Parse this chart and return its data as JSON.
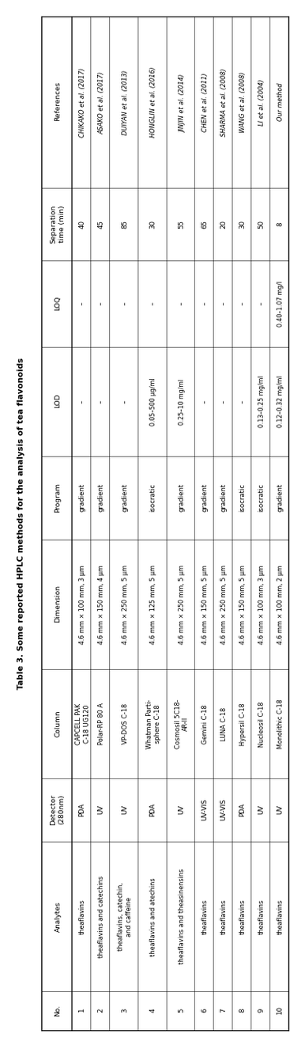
{
  "title": "Table 3. Some reported HPLC methods for the analysis of tea flavonoids",
  "columns": [
    "No.",
    "Analytes",
    "Detector\n(280nm)",
    "Column",
    "Dimension",
    "Program",
    "LOD",
    "LOQ",
    "Separation\ntime (min)",
    "References"
  ],
  "rows": [
    [
      "1",
      "theaflavins",
      "PDA",
      "CAPCELL PAK\nC-18 UG120",
      "4.6 mm × 100 mm, 3 μm",
      "gradient",
      "–",
      "–",
      "40",
      "CHIKAKO et al. (2017)"
    ],
    [
      "2",
      "theaflavins and catechins",
      "UV",
      "Polar-RP 80 A",
      "4.6 mm × 150 mm, 4 μm",
      "gradient",
      "–",
      "–",
      "45",
      "ASAKO et al. (2017)"
    ],
    [
      "3",
      "theaflavins, catechin,\nand caffeine",
      "UV",
      "VP-DOS C-18",
      "4.6 mm × 250 mm, 5 μm",
      "gradient",
      "–",
      "–",
      "85",
      "DUIYAN et al. (2013)"
    ],
    [
      "4",
      "theaflavins and atechins",
      "PDA",
      "Whatman Parti-\nsphere C-18",
      "4.6 mm × 125 mm, 5 μm",
      "isocratic",
      "0.05–500 μg/ml",
      "–",
      "30",
      "HONGLIN et al. (2016)"
    ],
    [
      "5",
      "theaflavins and theasinensins",
      "UV",
      "Cosmosil 5C18-\nAR-II",
      "4.6 mm × 250 mm, 5 μm",
      "gradient",
      "0.25–10 mg/ml",
      "–",
      "55",
      "JINJIN et al. (2014)"
    ],
    [
      "6",
      "theaflavins",
      "UV-VIS",
      "Gemini C-18",
      "4.6 mm × 150 mm, 5 μm",
      "gradient",
      "–",
      "–",
      "65",
      "CHEN et al. (2011)"
    ],
    [
      "7",
      "theaflavins",
      "UV-VIS",
      "LUNA C-18",
      "4.6 mm × 250 mm, 5 μm",
      "gradient",
      "–",
      "–",
      "20",
      "SHARMA et al. (2008)"
    ],
    [
      "8",
      "theaflavins",
      "PDA",
      "Hypersil C-18",
      "4.6 mm × 150 mm, 5 μm",
      "isocratic",
      "–",
      "–",
      "30",
      "WANG et al. (2008)"
    ],
    [
      "9",
      "theaflavins",
      "UV",
      "Nucleosil C-18",
      "4.6 mm × 100 mm, 3 μm",
      "isocratic",
      "0.13–0.25 mg/ml",
      "–",
      "50",
      "LI et al. (2004)"
    ],
    [
      "10",
      "theaflavins",
      "UV",
      "Monolithic C-18",
      "4.6 mm × 100 mm, 2 μm",
      "gradient",
      "0.12–0.32 mg/ml",
      "0.40–1.07 mg/l",
      "8",
      "Our method"
    ]
  ],
  "ref_italic": [
    "CHIKAKO",
    "ASAKO",
    "DUIYAN",
    "HONGLIN",
    "JINJIN",
    "CHEN",
    "SHARMA",
    "WANG",
    "LI",
    ""
  ],
  "background_color": "#ffffff",
  "text_color": "#000000",
  "line_color": "#000000",
  "font_size": 6.2,
  "header_font_size": 6.5,
  "title_font_size": 7.5
}
